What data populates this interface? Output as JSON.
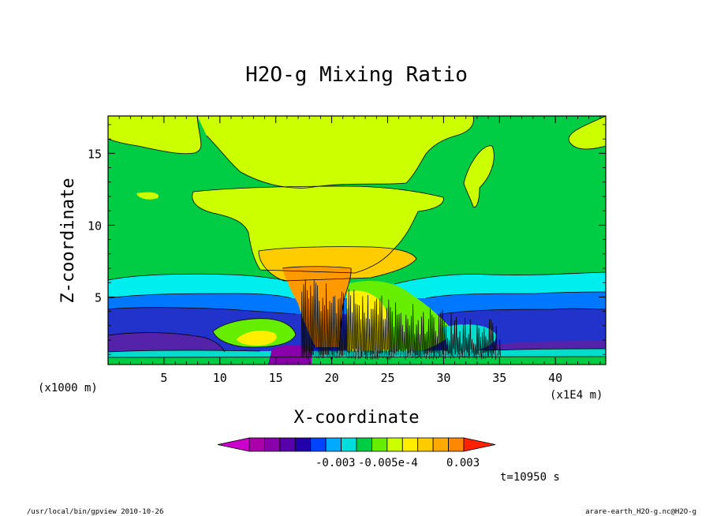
{
  "chart_data": {
    "type": "heatmap",
    "title": "H2O-g Mixing Ratio",
    "xlabel": "X-coordinate",
    "ylabel": "Z-coordinate",
    "x_unit_left": "(x1000 m)",
    "x_unit_right": "(x1E4 m)",
    "xlim": [
      0,
      44.5
    ],
    "ylim": [
      0.3,
      17.6
    ],
    "x_ticks": [
      5,
      10,
      15,
      20,
      25,
      30,
      35,
      40
    ],
    "y_ticks": [
      5,
      10,
      15
    ],
    "colorbar": {
      "colors": [
        "#cc00cc",
        "#aa00aa",
        "#8800aa",
        "#5500aa",
        "#2200aa",
        "#0044ff",
        "#00aaff",
        "#00dddd",
        "#00cc44",
        "#66ee00",
        "#ccff00",
        "#ffee00",
        "#ffcc00",
        "#ffaa00",
        "#ff8800",
        "#ff2200"
      ],
      "labels": [
        "-0.003",
        "-0.005e-4",
        "0.003"
      ]
    },
    "time_label": "t=10950 s",
    "footer_left": "/usr/local/bin/gpview   2010-10-26",
    "footer_right": "arare-earth_H2O-g.nc@H2O-g"
  }
}
